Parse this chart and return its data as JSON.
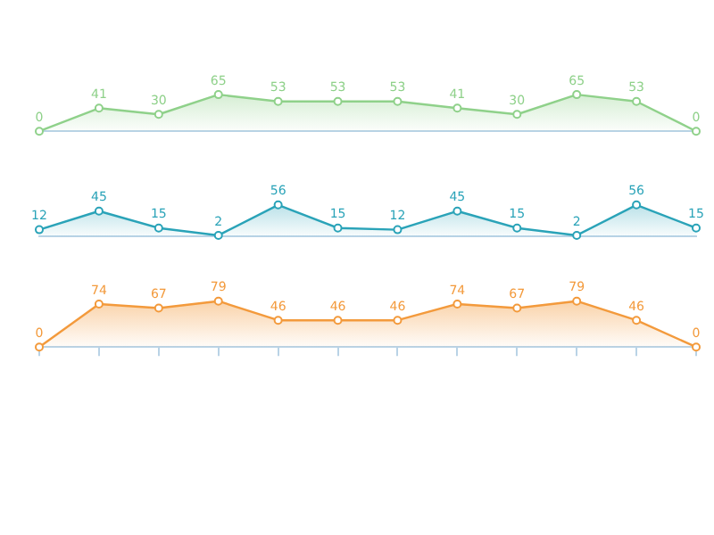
{
  "chart_data": [
    {
      "type": "area",
      "categories": [
        null,
        null,
        null,
        null,
        null,
        null,
        null,
        null,
        null,
        null,
        null,
        null
      ],
      "values": [
        0,
        41,
        30,
        65,
        53,
        53,
        53,
        41,
        30,
        65,
        53,
        0
      ],
      "color": "#8fd18a",
      "data_labels": true,
      "marker": "circle"
    },
    {
      "type": "area",
      "categories": [
        null,
        null,
        null,
        null,
        null,
        null,
        null,
        null,
        null,
        null,
        null,
        null
      ],
      "values": [
        12,
        45,
        15,
        2,
        56,
        15,
        12,
        45,
        15,
        2,
        56,
        15
      ],
      "color": "#2aa3b8",
      "data_labels": true,
      "marker": "circle"
    },
    {
      "type": "area",
      "categories": [
        null,
        null,
        null,
        null,
        null,
        null,
        null,
        null,
        null,
        null,
        null,
        null
      ],
      "values": [
        0,
        74,
        67,
        79,
        46,
        46,
        46,
        74,
        67,
        79,
        46,
        0
      ],
      "color": "#f39a3c",
      "data_labels": true,
      "marker": "circle"
    }
  ]
}
